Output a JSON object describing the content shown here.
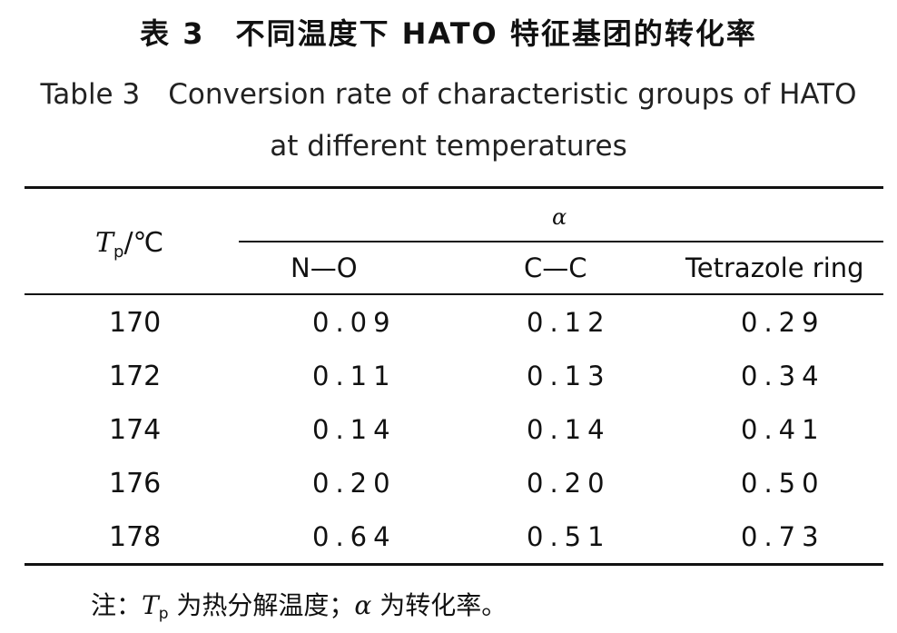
{
  "title_cn": "表 3　不同温度下 HATO 特征基团的转化率",
  "title_en_line1": "Table 3　Conversion rate of characteristic groups of HATO",
  "title_en_line2": "at different temperatures",
  "header": {
    "tp_var": "T",
    "tp_sub": "p",
    "tp_unit": "/℃",
    "alpha": "α",
    "columns": [
      "N—O",
      "C—C",
      "Tetrazole ring"
    ]
  },
  "rows": [
    {
      "tp": "170",
      "no": "0.09",
      "cc": "0.12",
      "ring": "0.29"
    },
    {
      "tp": "172",
      "no": "0.11",
      "cc": "0.13",
      "ring": "0.34"
    },
    {
      "tp": "174",
      "no": "0.14",
      "cc": "0.14",
      "ring": "0.41"
    },
    {
      "tp": "176",
      "no": "0.20",
      "cc": "0.20",
      "ring": "0.50"
    },
    {
      "tp": "178",
      "no": "0.64",
      "cc": "0.51",
      "ring": "0.73"
    }
  ],
  "note": {
    "prefix": "注：",
    "tp_var": "T",
    "tp_sub": "p",
    "mid": " 为热分解温度；",
    "alpha": "α",
    "suffix": " 为转化率。"
  }
}
